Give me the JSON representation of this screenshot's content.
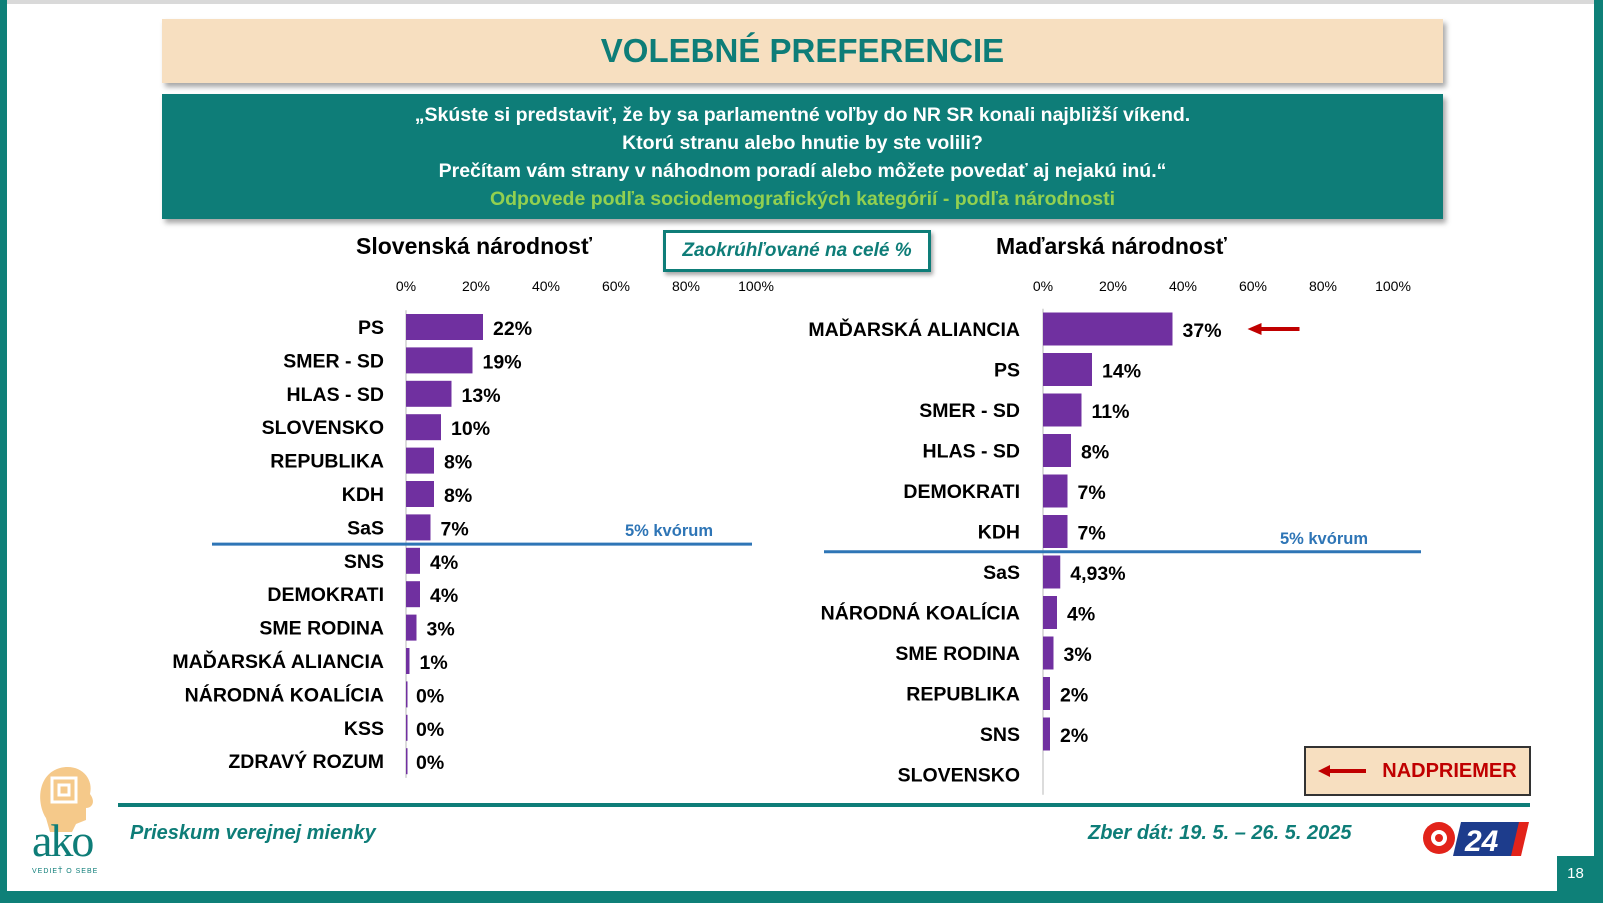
{
  "header": {
    "title": "VOLEBNÉ PREFERENCIE",
    "question_lines": [
      "„Skúste si predstaviť, že by sa parlamentné voľby do NR SR konali najbližší víkend.",
      "Ktorú stranu alebo hnutie by ste volili?",
      "Prečítam vám strany v náhodnom poradí alebo môžete povedať aj nejakú inú.“"
    ],
    "subtitle": "Odpovede podľa sociodemografických kategórií - podľa národnosti"
  },
  "note": "Zaokrúhľované na celé %",
  "legend": {
    "label": "NADPRIEMER"
  },
  "footer": {
    "left": "Prieskum verejnej mienky",
    "right": "Zber dát: 19. 5. – 26. 5. 2025",
    "page_number": "18",
    "logo_text": "ako",
    "logo_tagline": "VEDIEŤ O SEBE",
    "tv_logo_text": "24"
  },
  "colors": {
    "bar": "#7030a0",
    "teal": "#0e7d78",
    "quorum_line": "#2e75b6",
    "arrow": "#c00000",
    "title_bg": "#f7dfc0",
    "subtitle_green": "#92d050"
  },
  "chart_data": [
    {
      "type": "bar",
      "orientation": "horizontal",
      "title": "Slovenská národnosť",
      "xlim": [
        0,
        100
      ],
      "x_ticks": [
        "0%",
        "20%",
        "40%",
        "60%",
        "80%",
        "100%"
      ],
      "quorum_label": "5% kvórum",
      "quorum_after_index": 6,
      "categories": [
        "PS",
        "SMER - SD",
        "HLAS - SD",
        "SLOVENSKO",
        "REPUBLIKA",
        "KDH",
        "SaS",
        "SNS",
        "DEMOKRATI",
        "SME RODINA",
        "MAĎARSKÁ ALIANCIA",
        "NÁRODNÁ KOALÍCIA",
        "KSS",
        "ZDRAVÝ ROZUM"
      ],
      "values": [
        22,
        19,
        13,
        10,
        8,
        8,
        7,
        4,
        4,
        3,
        1,
        0,
        0,
        0
      ],
      "labels": [
        "22%",
        "19%",
        "13%",
        "10%",
        "8%",
        "8%",
        "7%",
        "4%",
        "4%",
        "3%",
        "1%",
        "0%",
        "0%",
        "0%"
      ],
      "highlighted": []
    },
    {
      "type": "bar",
      "orientation": "horizontal",
      "title": "Maďarská národnosť",
      "xlim": [
        0,
        100
      ],
      "x_ticks": [
        "0%",
        "20%",
        "40%",
        "60%",
        "80%",
        "100%"
      ],
      "quorum_label": "5% kvórum",
      "quorum_after_index": 5,
      "categories": [
        "MAĎARSKÁ ALIANCIA",
        "PS",
        "SMER - SD",
        "HLAS - SD",
        "DEMOKRATI",
        "KDH",
        "SaS",
        "NÁRODNÁ KOALÍCIA",
        "SME RODINA",
        "REPUBLIKA",
        "SNS",
        "SLOVENSKO"
      ],
      "values": [
        37,
        14,
        11,
        8,
        7,
        7,
        4.93,
        4,
        3,
        2,
        2,
        null
      ],
      "labels": [
        "37%",
        "14%",
        "11%",
        "8%",
        "7%",
        "7%",
        "4,93%",
        "4%",
        "3%",
        "2%",
        "2%",
        ""
      ],
      "highlighted": [
        0
      ]
    }
  ]
}
